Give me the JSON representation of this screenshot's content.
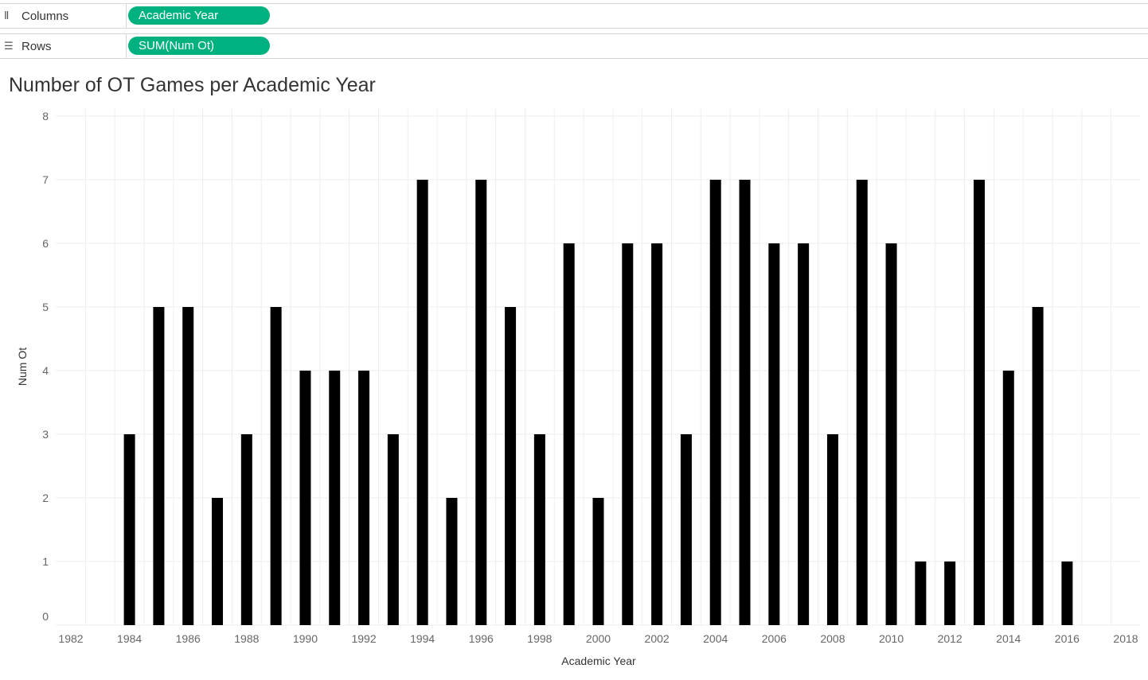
{
  "shelves": {
    "columns": {
      "icon": "columns-icon",
      "label": "Columns",
      "pill": "Academic Year"
    },
    "rows": {
      "icon": "rows-icon",
      "label": "Rows",
      "pill": "SUM(Num Ot)"
    }
  },
  "colors": {
    "pill": "#00b180",
    "bar": "#000000",
    "grid": "#eeeeee"
  },
  "chart_data": {
    "type": "bar",
    "title": "Number of OT Games per Academic Year",
    "xlabel": "Academic Year",
    "ylabel": "Num Ot",
    "xlim": [
      1982,
      2018
    ],
    "ylim": [
      0,
      8
    ],
    "x_ticks": [
      1982,
      1984,
      1986,
      1988,
      1990,
      1992,
      1994,
      1996,
      1998,
      2000,
      2002,
      2004,
      2006,
      2008,
      2010,
      2012,
      2014,
      2016,
      2018
    ],
    "y_ticks": [
      0,
      1,
      2,
      3,
      4,
      5,
      6,
      7,
      8
    ],
    "grid": true,
    "x": [
      1984,
      1985,
      1986,
      1987,
      1988,
      1989,
      1990,
      1991,
      1992,
      1993,
      1994,
      1995,
      1996,
      1997,
      1998,
      1999,
      2000,
      2001,
      2002,
      2003,
      2004,
      2005,
      2006,
      2007,
      2008,
      2009,
      2010,
      2011,
      2012,
      2013,
      2014,
      2015,
      2016
    ],
    "values": [
      3,
      5,
      5,
      2,
      3,
      5,
      4,
      4,
      4,
      3,
      7,
      2,
      7,
      5,
      3,
      6,
      2,
      6,
      6,
      3,
      7,
      7,
      6,
      6,
      3,
      7,
      6,
      1,
      1,
      7,
      4,
      5,
      1
    ]
  }
}
